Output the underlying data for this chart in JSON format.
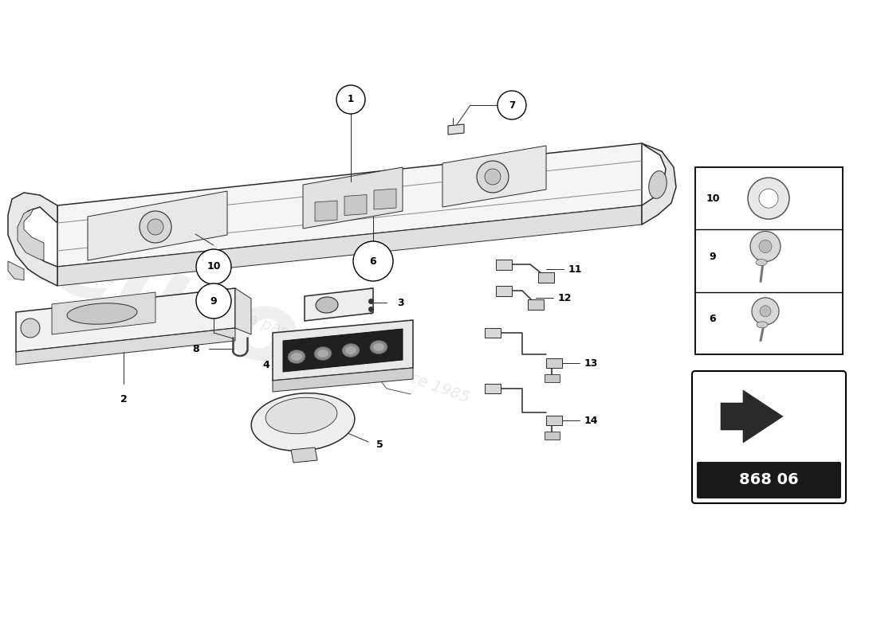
{
  "bg_color": "#ffffff",
  "part_number_box": "868 06",
  "part_number_bg": "#1a1a1a",
  "part_number_text_color": "#ffffff",
  "line_color": "#2a2a2a",
  "lw_main": 1.1,
  "lw_thin": 0.7,
  "callout_circle_border": "#000000",
  "watermark_euro_color": "#c8c8c8",
  "watermark_text_color": "#c0c0c0",
  "fig_width": 11.0,
  "fig_height": 8.0,
  "dpi": 100
}
